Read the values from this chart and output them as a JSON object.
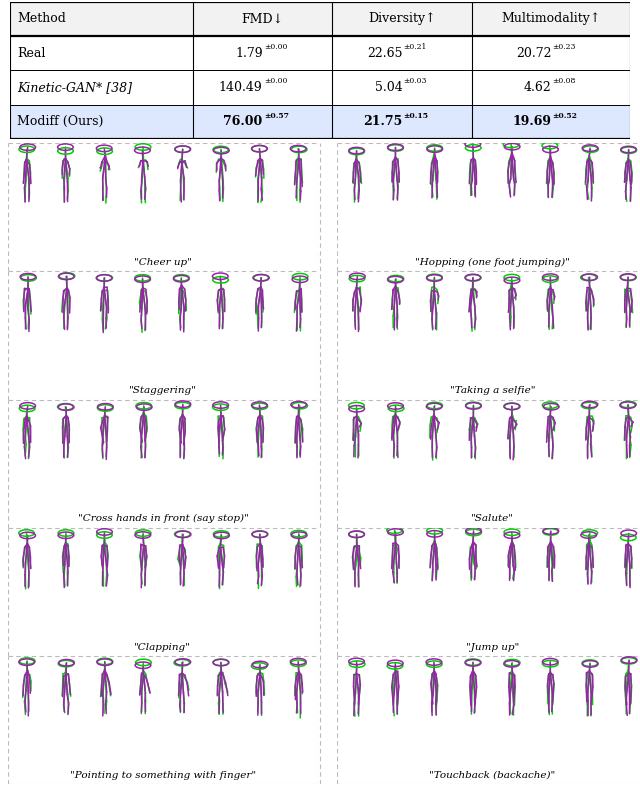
{
  "table": {
    "headers": [
      "Method",
      "FMD↓",
      "Diversity↑",
      "Multimodality↑"
    ],
    "rows": [
      [
        "Real",
        "1.79±0.00",
        "22.65±0.21",
        "20.72±0.23"
      ],
      [
        "Kinetic-GAN* [38]",
        "140.49±0.00",
        "5.04±0.03",
        "4.62±0.08"
      ],
      [
        "Modiff (Ours)",
        "76.00±0.57",
        "21.75±0.15",
        "19.69±0.52"
      ]
    ],
    "bold_row": 2,
    "highlight_color": "#dde8ff"
  },
  "action_labels": [
    [
      "\"Cheer up\"",
      "\"Hopping (one foot jumping)\""
    ],
    [
      "\"Staggering\"",
      "\"Taking a selfie\""
    ],
    [
      "\"Cross hands in front (say stop)\"",
      "\"Salute\""
    ],
    [
      "\"Clapping\"",
      "\"Jump up\""
    ],
    [
      "\"Pointing to something with finger\"",
      "\"Touchback (backache)\""
    ]
  ],
  "green": "#00cc00",
  "purple": "#9922aa",
  "bg": "#ffffff",
  "fig_width": 6.4,
  "fig_height": 7.86
}
